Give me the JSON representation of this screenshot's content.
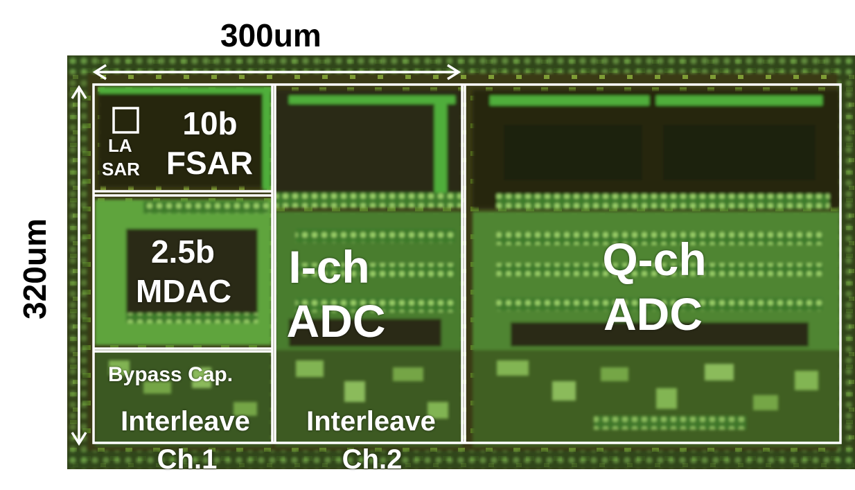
{
  "dimensions": {
    "width_label": "300um",
    "height_label": "320um"
  },
  "blocks": {
    "fsar_bits": "10b",
    "fsar_name": "FSAR",
    "la_sar_line1": "LA",
    "la_sar_line2": "SAR",
    "mdac_bits": "2.5b",
    "mdac_name": "MDAC",
    "bypass_cap": "Bypass Cap.",
    "ich_line1": "I-ch",
    "ich_line2": "ADC",
    "qch_line1": "Q-ch",
    "qch_line2": "ADC",
    "interleave_ch1_line1": "Interleave",
    "interleave_ch1_line2": "Ch.1",
    "interleave_ch2_line1": "Interleave",
    "interleave_ch2_line2": "Ch.2"
  },
  "colors": {
    "background": "#ffffff",
    "label_text": "#ffffff",
    "dimension_text": "#000000",
    "die_dark": "#2b2a10",
    "metal_green": "#4fae3a",
    "metal_highlight": "#9ed36b",
    "outline": "#ffffff"
  }
}
